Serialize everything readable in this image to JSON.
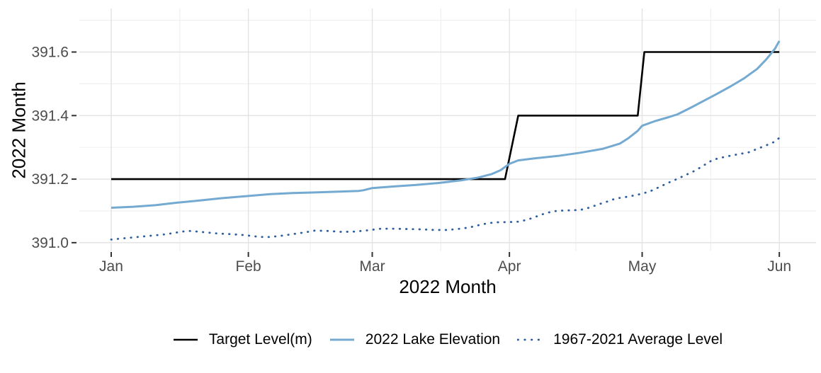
{
  "chart_data": {
    "type": "line",
    "title": "",
    "xlabel": "2022 Month",
    "ylabel": "2022 Month",
    "x_encoding": "days since Jan 1 (x axis shows month starts Jan-Jun 2022)",
    "x_ticks": [
      {
        "label": "Jan",
        "day": 0
      },
      {
        "label": "Feb",
        "day": 31
      },
      {
        "label": "Mar",
        "day": 59
      },
      {
        "label": "Apr",
        "day": 90
      },
      {
        "label": "May",
        "day": 120
      },
      {
        "label": "Jun",
        "day": 151
      }
    ],
    "y_ticks": [
      {
        "label": "391.0",
        "value": 391.0
      },
      {
        "label": "391.2",
        "value": 391.2
      },
      {
        "label": "391.4",
        "value": 391.4
      },
      {
        "label": "391.6",
        "value": 391.6
      }
    ],
    "xlim": [
      -7.2,
      159.3
    ],
    "ylim": [
      390.973,
      391.737
    ],
    "grid": {
      "major": true,
      "minor": true
    },
    "legend_position": "bottom",
    "series": [
      {
        "name": "Target Level(m)",
        "style": "solid",
        "color": "#000000",
        "width": 2.6,
        "points": [
          [
            0,
            391.2
          ],
          [
            89,
            391.2
          ],
          [
            92,
            391.4
          ],
          [
            119,
            391.4
          ],
          [
            120.5,
            391.6
          ],
          [
            151,
            391.6
          ]
        ]
      },
      {
        "name": "2022 Lake Elevation",
        "style": "solid",
        "color": "#74aad1",
        "width": 3,
        "points": [
          [
            0,
            391.11
          ],
          [
            5,
            391.113
          ],
          [
            10,
            391.118
          ],
          [
            15,
            391.126
          ],
          [
            20,
            391.133
          ],
          [
            25,
            391.14
          ],
          [
            31,
            391.147
          ],
          [
            36,
            391.153
          ],
          [
            41,
            391.156
          ],
          [
            46,
            391.158
          ],
          [
            52,
            391.161
          ],
          [
            56,
            391.163
          ],
          [
            57,
            391.165
          ],
          [
            59,
            391.172
          ],
          [
            64,
            391.177
          ],
          [
            69,
            391.182
          ],
          [
            74,
            391.188
          ],
          [
            79,
            391.196
          ],
          [
            83,
            391.205
          ],
          [
            86,
            391.216
          ],
          [
            88,
            391.228
          ],
          [
            90,
            391.248
          ],
          [
            92,
            391.259
          ],
          [
            96,
            391.266
          ],
          [
            101,
            391.273
          ],
          [
            106,
            391.283
          ],
          [
            111,
            391.295
          ],
          [
            115,
            391.312
          ],
          [
            117,
            391.33
          ],
          [
            119,
            391.352
          ],
          [
            120,
            391.368
          ],
          [
            123,
            391.383
          ],
          [
            126,
            391.395
          ],
          [
            128,
            391.404
          ],
          [
            131,
            391.425
          ],
          [
            134,
            391.447
          ],
          [
            137,
            391.469
          ],
          [
            140,
            391.492
          ],
          [
            143,
            391.517
          ],
          [
            146,
            391.547
          ],
          [
            148,
            391.576
          ],
          [
            150,
            391.61
          ],
          [
            151,
            391.635
          ]
        ]
      },
      {
        "name": "1967-2021 Average Level",
        "style": "dotted",
        "color": "#2e5f9e",
        "width": 2.8,
        "points": [
          [
            0,
            391.01
          ],
          [
            3,
            391.014
          ],
          [
            6,
            391.018
          ],
          [
            9,
            391.022
          ],
          [
            12,
            391.026
          ],
          [
            14,
            391.03
          ],
          [
            16,
            391.035
          ],
          [
            18,
            391.037
          ],
          [
            21,
            391.033
          ],
          [
            24,
            391.029
          ],
          [
            27,
            391.027
          ],
          [
            30,
            391.024
          ],
          [
            33,
            391.019
          ],
          [
            35,
            391.017
          ],
          [
            38,
            391.021
          ],
          [
            41,
            391.027
          ],
          [
            44,
            391.033
          ],
          [
            46,
            391.038
          ],
          [
            49,
            391.037
          ],
          [
            52,
            391.034
          ],
          [
            55,
            391.035
          ],
          [
            58,
            391.039
          ],
          [
            61,
            391.044
          ],
          [
            64,
            391.044
          ],
          [
            67,
            391.043
          ],
          [
            70,
            391.042
          ],
          [
            73,
            391.04
          ],
          [
            76,
            391.04
          ],
          [
            79,
            391.044
          ],
          [
            81,
            391.048
          ],
          [
            83,
            391.055
          ],
          [
            85,
            391.061
          ],
          [
            87,
            391.064
          ],
          [
            90,
            391.065
          ],
          [
            92,
            391.066
          ],
          [
            94,
            391.072
          ],
          [
            96,
            391.082
          ],
          [
            98,
            391.092
          ],
          [
            100,
            391.099
          ],
          [
            102,
            391.101
          ],
          [
            104,
            391.102
          ],
          [
            106,
            391.103
          ],
          [
            108,
            391.11
          ],
          [
            110,
            391.12
          ],
          [
            112,
            391.129
          ],
          [
            114,
            391.139
          ],
          [
            116,
            391.143
          ],
          [
            118,
            391.148
          ],
          [
            120,
            391.154
          ],
          [
            122,
            391.163
          ],
          [
            124,
            391.176
          ],
          [
            126,
            391.189
          ],
          [
            128,
            391.201
          ],
          [
            130,
            391.214
          ],
          [
            132,
            391.227
          ],
          [
            134,
            391.244
          ],
          [
            136,
            391.261
          ],
          [
            138,
            391.268
          ],
          [
            140,
            391.274
          ],
          [
            142,
            391.279
          ],
          [
            144,
            391.284
          ],
          [
            146,
            391.295
          ],
          [
            148,
            391.306
          ],
          [
            150,
            391.318
          ],
          [
            151,
            391.33
          ]
        ]
      }
    ],
    "styles": {
      "background": "#ffffff",
      "grid_major_color": "#e3e3e3",
      "grid_minor_color": "#f0f0f0",
      "tick_label_color": "#4d4d4d",
      "tick_mark_color": "#333333"
    }
  }
}
